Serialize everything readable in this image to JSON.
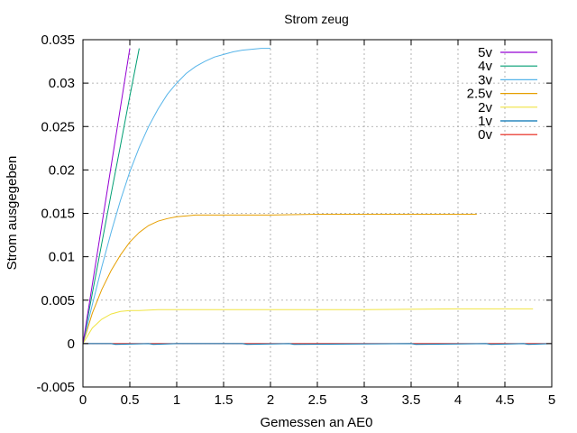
{
  "chart_data": {
    "type": "line",
    "title": "Strom zeug",
    "xlabel": "Gemessen an AE0",
    "ylabel": "Strom ausgegeben",
    "xlim": [
      0,
      5
    ],
    "ylim": [
      -0.005,
      0.035
    ],
    "xticks": [
      "0",
      "0.5",
      "1",
      "1.5",
      "2",
      "2.5",
      "3",
      "3.5",
      "4",
      "4.5",
      "5"
    ],
    "yticks": [
      "-0.005",
      "0",
      "0.005",
      "0.01",
      "0.015",
      "0.02",
      "0.025",
      "0.03",
      "0.035"
    ],
    "grid": true,
    "legend_position": "top-right",
    "series": [
      {
        "name": "5v",
        "color": "#9400d3",
        "x": [
          0,
          0.1,
          0.2,
          0.3,
          0.4,
          0.5
        ],
        "y": [
          0,
          0.0068,
          0.0136,
          0.0204,
          0.0272,
          0.034
        ]
      },
      {
        "name": "4v",
        "color": "#009e73",
        "x": [
          0,
          0.1,
          0.2,
          0.3,
          0.4,
          0.5,
          0.6
        ],
        "y": [
          0,
          0.0058,
          0.0115,
          0.0172,
          0.0228,
          0.0285,
          0.034
        ]
      },
      {
        "name": "3v",
        "color": "#56b4e9",
        "x": [
          0,
          0.1,
          0.2,
          0.3,
          0.4,
          0.5,
          0.6,
          0.7,
          0.8,
          0.9,
          1.0,
          1.1,
          1.2,
          1.3,
          1.4,
          1.5,
          1.6,
          1.7,
          1.8,
          1.9,
          2.0
        ],
        "y": [
          0,
          0.0045,
          0.0088,
          0.0128,
          0.0165,
          0.0198,
          0.0226,
          0.025,
          0.027,
          0.0287,
          0.03,
          0.0311,
          0.0319,
          0.0325,
          0.033,
          0.0333,
          0.0336,
          0.0338,
          0.0339,
          0.034,
          0.034
        ]
      },
      {
        "name": "2.5v",
        "color": "#e69f00",
        "x": [
          0,
          0.1,
          0.2,
          0.3,
          0.4,
          0.5,
          0.6,
          0.7,
          0.8,
          0.9,
          1.0,
          1.1,
          1.2,
          1.4,
          1.6,
          2.0,
          2.5,
          3.0,
          3.5,
          4.0,
          4.2
        ],
        "y": [
          0,
          0.0035,
          0.0062,
          0.0084,
          0.0102,
          0.0117,
          0.0128,
          0.0136,
          0.0141,
          0.0144,
          0.0146,
          0.0147,
          0.0148,
          0.0148,
          0.0148,
          0.0148,
          0.0149,
          0.0149,
          0.0149,
          0.0149,
          0.0149
        ]
      },
      {
        "name": "2v",
        "color": "#f0e442",
        "x": [
          0,
          0.1,
          0.2,
          0.3,
          0.4,
          0.5,
          0.6,
          0.8,
          1.0,
          2.0,
          3.0,
          4.0,
          4.8
        ],
        "y": [
          0,
          0.0018,
          0.0028,
          0.0034,
          0.0037,
          0.0038,
          0.0038,
          0.0039,
          0.0039,
          0.0039,
          0.0039,
          0.004,
          0.004
        ]
      },
      {
        "name": "1v",
        "color": "#0072b2",
        "x": [
          0,
          0.3,
          0.35,
          0.7,
          0.75,
          1.0,
          1.7,
          1.75,
          2.2,
          2.25,
          3.5,
          3.55,
          4.3,
          4.35,
          4.7,
          4.75,
          5.0
        ],
        "y": [
          0,
          0,
          -0.0001,
          0,
          -0.0001,
          0,
          0,
          -0.0001,
          0,
          -0.0001,
          0,
          -0.0001,
          0,
          -0.0001,
          0,
          -0.0001,
          0
        ]
      },
      {
        "name": "0v",
        "color": "#e51e10",
        "x": [
          0,
          5.0
        ],
        "y": [
          0,
          0
        ]
      }
    ]
  }
}
